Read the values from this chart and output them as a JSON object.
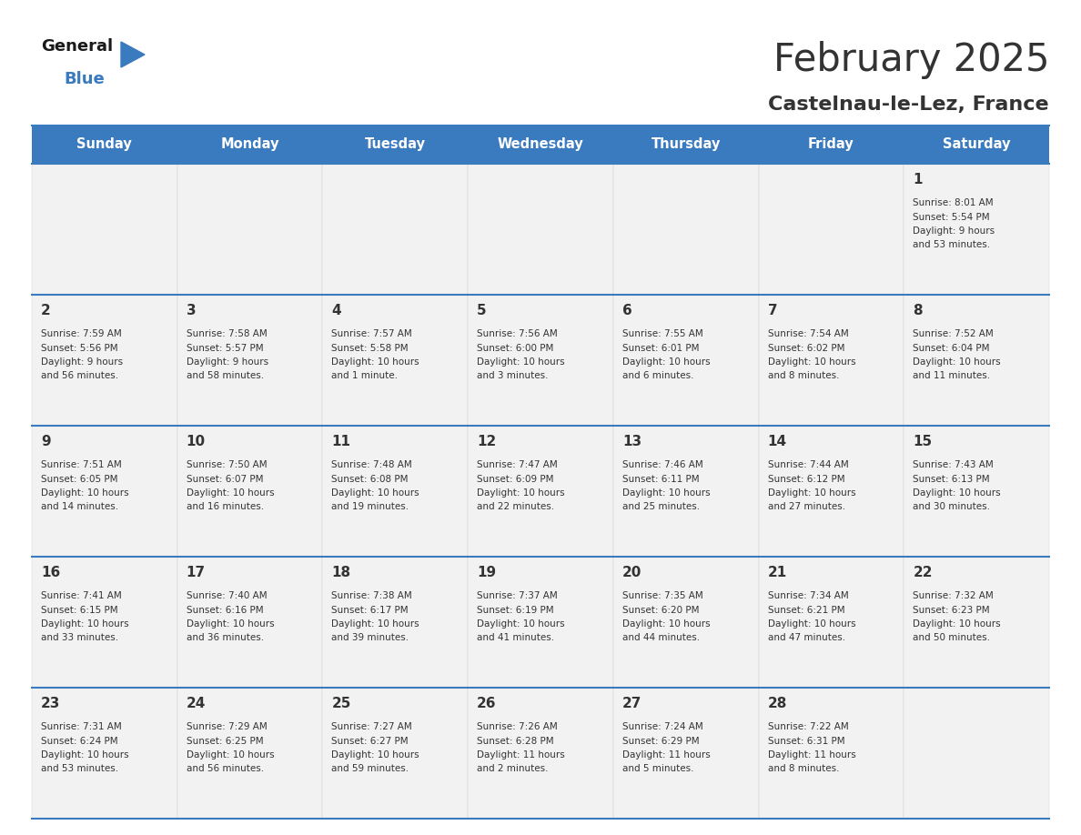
{
  "title": "February 2025",
  "subtitle": "Castelnau-le-Lez, France",
  "header_bg": "#3a7abf",
  "header_text_color": "#ffffff",
  "cell_bg": "#f2f2f2",
  "border_color": "#3a7abf",
  "text_color": "#333333",
  "days_of_week": [
    "Sunday",
    "Monday",
    "Tuesday",
    "Wednesday",
    "Thursday",
    "Friday",
    "Saturday"
  ],
  "weeks": [
    [
      {
        "day": null
      },
      {
        "day": null
      },
      {
        "day": null
      },
      {
        "day": null
      },
      {
        "day": null
      },
      {
        "day": null
      },
      {
        "day": 1,
        "sunrise": "8:01 AM",
        "sunset": "5:54 PM",
        "daylight_hours": 9,
        "daylight_minutes": 53
      }
    ],
    [
      {
        "day": 2,
        "sunrise": "7:59 AM",
        "sunset": "5:56 PM",
        "daylight_hours": 9,
        "daylight_minutes": 56
      },
      {
        "day": 3,
        "sunrise": "7:58 AM",
        "sunset": "5:57 PM",
        "daylight_hours": 9,
        "daylight_minutes": 58
      },
      {
        "day": 4,
        "sunrise": "7:57 AM",
        "sunset": "5:58 PM",
        "daylight_hours": 10,
        "daylight_minutes": 1
      },
      {
        "day": 5,
        "sunrise": "7:56 AM",
        "sunset": "6:00 PM",
        "daylight_hours": 10,
        "daylight_minutes": 3
      },
      {
        "day": 6,
        "sunrise": "7:55 AM",
        "sunset": "6:01 PM",
        "daylight_hours": 10,
        "daylight_minutes": 6
      },
      {
        "day": 7,
        "sunrise": "7:54 AM",
        "sunset": "6:02 PM",
        "daylight_hours": 10,
        "daylight_minutes": 8
      },
      {
        "day": 8,
        "sunrise": "7:52 AM",
        "sunset": "6:04 PM",
        "daylight_hours": 10,
        "daylight_minutes": 11
      }
    ],
    [
      {
        "day": 9,
        "sunrise": "7:51 AM",
        "sunset": "6:05 PM",
        "daylight_hours": 10,
        "daylight_minutes": 14
      },
      {
        "day": 10,
        "sunrise": "7:50 AM",
        "sunset": "6:07 PM",
        "daylight_hours": 10,
        "daylight_minutes": 16
      },
      {
        "day": 11,
        "sunrise": "7:48 AM",
        "sunset": "6:08 PM",
        "daylight_hours": 10,
        "daylight_minutes": 19
      },
      {
        "day": 12,
        "sunrise": "7:47 AM",
        "sunset": "6:09 PM",
        "daylight_hours": 10,
        "daylight_minutes": 22
      },
      {
        "day": 13,
        "sunrise": "7:46 AM",
        "sunset": "6:11 PM",
        "daylight_hours": 10,
        "daylight_minutes": 25
      },
      {
        "day": 14,
        "sunrise": "7:44 AM",
        "sunset": "6:12 PM",
        "daylight_hours": 10,
        "daylight_minutes": 27
      },
      {
        "day": 15,
        "sunrise": "7:43 AM",
        "sunset": "6:13 PM",
        "daylight_hours": 10,
        "daylight_minutes": 30
      }
    ],
    [
      {
        "day": 16,
        "sunrise": "7:41 AM",
        "sunset": "6:15 PM",
        "daylight_hours": 10,
        "daylight_minutes": 33
      },
      {
        "day": 17,
        "sunrise": "7:40 AM",
        "sunset": "6:16 PM",
        "daylight_hours": 10,
        "daylight_minutes": 36
      },
      {
        "day": 18,
        "sunrise": "7:38 AM",
        "sunset": "6:17 PM",
        "daylight_hours": 10,
        "daylight_minutes": 39
      },
      {
        "day": 19,
        "sunrise": "7:37 AM",
        "sunset": "6:19 PM",
        "daylight_hours": 10,
        "daylight_minutes": 41
      },
      {
        "day": 20,
        "sunrise": "7:35 AM",
        "sunset": "6:20 PM",
        "daylight_hours": 10,
        "daylight_minutes": 44
      },
      {
        "day": 21,
        "sunrise": "7:34 AM",
        "sunset": "6:21 PM",
        "daylight_hours": 10,
        "daylight_minutes": 47
      },
      {
        "day": 22,
        "sunrise": "7:32 AM",
        "sunset": "6:23 PM",
        "daylight_hours": 10,
        "daylight_minutes": 50
      }
    ],
    [
      {
        "day": 23,
        "sunrise": "7:31 AM",
        "sunset": "6:24 PM",
        "daylight_hours": 10,
        "daylight_minutes": 53
      },
      {
        "day": 24,
        "sunrise": "7:29 AM",
        "sunset": "6:25 PM",
        "daylight_hours": 10,
        "daylight_minutes": 56
      },
      {
        "day": 25,
        "sunrise": "7:27 AM",
        "sunset": "6:27 PM",
        "daylight_hours": 10,
        "daylight_minutes": 59
      },
      {
        "day": 26,
        "sunrise": "7:26 AM",
        "sunset": "6:28 PM",
        "daylight_hours": 11,
        "daylight_minutes": 2
      },
      {
        "day": 27,
        "sunrise": "7:24 AM",
        "sunset": "6:29 PM",
        "daylight_hours": 11,
        "daylight_minutes": 5
      },
      {
        "day": 28,
        "sunrise": "7:22 AM",
        "sunset": "6:31 PM",
        "daylight_hours": 11,
        "daylight_minutes": 8
      },
      {
        "day": null
      }
    ]
  ],
  "logo_general_color": "#1a1a1a",
  "logo_blue_color": "#3a7abf",
  "logo_triangle_color": "#3a7abf",
  "fig_width": 11.88,
  "fig_height": 9.18,
  "dpi": 100
}
